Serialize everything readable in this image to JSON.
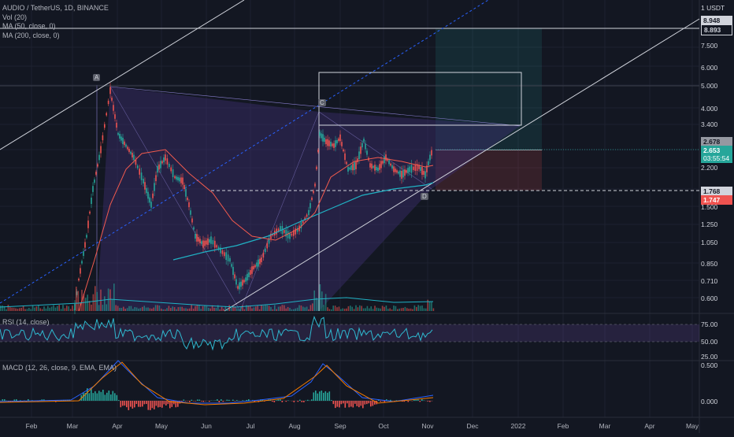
{
  "legend": {
    "title": "AUDIO / TetherUS, 1D, BINANCE",
    "vol": "Vol (20)",
    "ma50": "MA (50, close, 0)",
    "ma200": "MA (200, close, 0)"
  },
  "rsi_title": "RSI (14, close)",
  "macd_title": "MACD (12, 26, close, 9, EMA, EMA)",
  "currency": "USDT",
  "price_axis": [
    "1",
    "7.500",
    "6.000",
    "5.000",
    "4.000",
    "3.400",
    "2.200",
    "1.500",
    "1.250",
    "1.050",
    "0.850",
    "0.710",
    "0.600"
  ],
  "badges": {
    "top_level": "8.948",
    "second_level": "8.893",
    "ma_value": "2.678",
    "last_price": "2.653",
    "countdown": "03:55:54",
    "support_level": "1.768",
    "stop_level": "1.747"
  },
  "rsi_axis": [
    "75.00",
    "50.00",
    "25.00"
  ],
  "macd_axis": [
    "0.500",
    "0.000"
  ],
  "x_axis": [
    "Feb",
    "Mar",
    "Apr",
    "May",
    "Jun",
    "Jul",
    "Aug",
    "Sep",
    "Oct",
    "Nov",
    "Dec",
    "2022",
    "Feb",
    "Mar",
    "Apr",
    "May"
  ],
  "markers": {
    "a": "A",
    "c": "C",
    "d": "D"
  },
  "colors": {
    "background": "#131722",
    "up": "#26a69a",
    "down": "#ef5350",
    "ma50": "#f15a4e",
    "ma200": "#20b2c4",
    "pattern_fill": "#3b2f6e",
    "rsi_line": "#2fb8cf",
    "macd_line": "#2962ff",
    "signal_line": "#f57c00"
  },
  "chart_data": {
    "type": "candlestick",
    "title": "AUDIO / TetherUS, 1D, BINANCE",
    "series": [
      {
        "name": "AUDIO / TetherUS",
        "dates": [
          "Feb",
          "Mar",
          "Mar",
          "Apr",
          "Apr",
          "May",
          "May",
          "Jun",
          "Jun",
          "Jul",
          "Jul",
          "Aug",
          "Aug",
          "Sep",
          "Sep",
          "Oct",
          "Oct",
          "Nov"
        ],
        "close": [
          0.55,
          0.62,
          1.8,
          4.3,
          2.6,
          2.3,
          1.9,
          1.1,
          0.95,
          0.72,
          0.86,
          1.05,
          1.6,
          3.3,
          2.4,
          2.2,
          1.9,
          2.653
        ]
      }
    ],
    "ylim": [
      0.55,
      9.0
    ],
    "scale": "log"
  }
}
